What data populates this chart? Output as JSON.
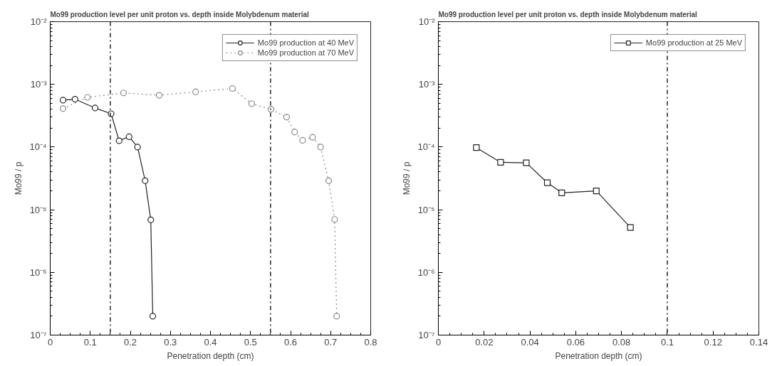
{
  "chart_data": [
    {
      "type": "line",
      "title": "Mo99 production level per unit proton vs. depth inside Molybdenum material",
      "xlabel": "Penetration depth (cm)",
      "ylabel": "Mo99 / p",
      "log": "y",
      "grid": false,
      "legend": "top right",
      "xlim": [
        0,
        0.8
      ],
      "xticks": [
        0,
        0.1,
        0.2,
        0.3,
        0.4,
        0.5,
        0.6,
        0.7,
        0.8
      ],
      "ylim": [
        1e-07,
        0.01
      ],
      "yticks": [
        {
          "value": 1e-07,
          "label": "10⁻⁷"
        },
        {
          "value": 1e-06,
          "label": "10⁻⁶"
        },
        {
          "value": 1e-05,
          "label": "10⁻⁵"
        },
        {
          "value": 0.0001,
          "label": "10⁻⁴"
        },
        {
          "value": 0.001,
          "label": "10⁻³"
        },
        {
          "value": 0.01,
          "label": "10⁻²"
        }
      ],
      "series": [
        {
          "name": "Mo99 production at 40 MeV",
          "color": "#222222",
          "marker": "circle",
          "line_style": "solid",
          "x": [
            0.032,
            0.062,
            0.112,
            0.152,
            0.172,
            0.197,
            0.218,
            0.237,
            0.251,
            0.256
          ],
          "values": [
            0.00056,
            0.00058,
            0.00042,
            0.00034,
            0.000126,
            0.000146,
            0.0001,
            2.9e-05,
            6.9e-06,
            2e-07
          ]
        },
        {
          "name": "Mo99 production at 70 MeV",
          "color": "#888888",
          "marker": "circle",
          "line_style": "dotted",
          "x": [
            0.032,
            0.093,
            0.183,
            0.272,
            0.363,
            0.455,
            0.503,
            0.551,
            0.59,
            0.61,
            0.63,
            0.655,
            0.675,
            0.695,
            0.71,
            0.715
          ],
          "values": [
            0.00041,
            0.00062,
            0.00073,
            0.00067,
            0.00076,
            0.00086,
            0.00049,
            0.0004,
            0.0003,
            0.000174,
            0.000128,
            0.000143,
            0.0001,
            2.9e-05,
            7e-06,
            2e-07
          ]
        }
      ],
      "ref_lines": [
        {
          "axis": "x",
          "value": 0.15,
          "line_style": "dashdot",
          "color": "#222222"
        },
        {
          "axis": "x",
          "value": 0.55,
          "line_style": "dashdot",
          "color": "#222222"
        }
      ]
    },
    {
      "type": "line",
      "title": "Mo99 production level per unit proton vs. depth inside Molybdenum material",
      "xlabel": "Penetration depth (cm)",
      "ylabel": "Mo99 / p",
      "log": "y",
      "grid": false,
      "legend": "top right",
      "xlim": [
        0,
        0.14
      ],
      "xticks": [
        0,
        0.02,
        0.04,
        0.06,
        0.08,
        0.1,
        0.12,
        0.14
      ],
      "ylim": [
        1e-07,
        0.01
      ],
      "yticks": [
        {
          "value": 1e-07,
          "label": "10⁻⁷"
        },
        {
          "value": 1e-06,
          "label": "10⁻⁶"
        },
        {
          "value": 1e-05,
          "label": "10⁻⁵"
        },
        {
          "value": 0.0001,
          "label": "10⁻⁴"
        },
        {
          "value": 0.001,
          "label": "10⁻³"
        },
        {
          "value": 0.01,
          "label": "10⁻²"
        }
      ],
      "series": [
        {
          "name": "Mo99 production at 25 MeV",
          "color": "#222222",
          "marker": "square",
          "line_style": "solid",
          "x": [
            0.0166,
            0.0272,
            0.0384,
            0.0476,
            0.0539,
            0.069,
            0.0839
          ],
          "values": [
            9.8e-05,
            5.7e-05,
            5.6e-05,
            2.7e-05,
            1.86e-05,
            2e-05,
            5.2e-06
          ]
        }
      ],
      "ref_lines": [
        {
          "axis": "x",
          "value": 0.1,
          "line_style": "dashdot",
          "color": "#222222"
        }
      ]
    }
  ]
}
